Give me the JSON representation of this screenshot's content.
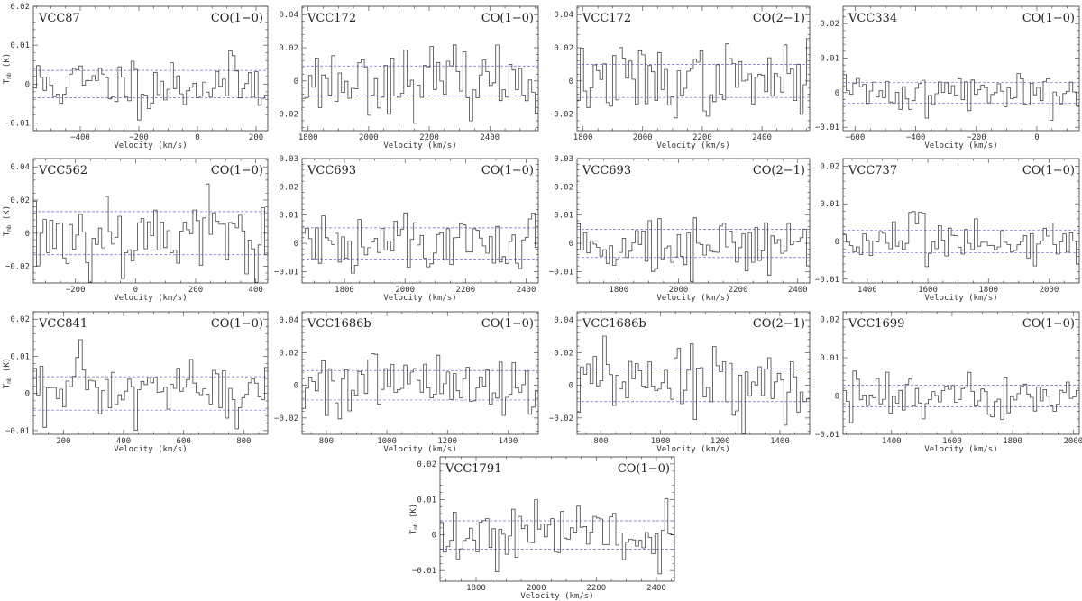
{
  "figure": {
    "y_axis_label_main": "T",
    "y_axis_label_sub": "mb",
    "y_axis_label_unit": "(K)",
    "colors": {
      "spectrum": "#444444",
      "rms": "#6b6bd6",
      "frame": "#333333"
    }
  },
  "chart_data": [
    {
      "type": "line",
      "source": "VCC87",
      "line": "CO(1−0)",
      "xlabel": "Velocity (km/s)",
      "xlim": [
        -560,
        240
      ],
      "ylim": [
        -0.012,
        0.02
      ],
      "xticks": [
        -400,
        -200,
        0,
        200
      ],
      "xtick_labels": [
        "−400",
        "−200",
        "0",
        "200"
      ],
      "yticks": [
        -0.01,
        0,
        0.01,
        0.02
      ],
      "ytick_labels": [
        "−0.01",
        "0",
        "0.01",
        "0.02"
      ],
      "rms": 0.0035,
      "seed": 11
    },
    {
      "type": "line",
      "source": "VCC172",
      "line": "CO(1−0)",
      "xlabel": "Velocity (km/s)",
      "xlim": [
        1780,
        2560
      ],
      "ylim": [
        -0.03,
        0.045
      ],
      "xticks": [
        1800,
        2000,
        2200,
        2400
      ],
      "xtick_labels": [
        "1800",
        "2000",
        "2200",
        "2400"
      ],
      "yticks": [
        -0.02,
        0,
        0.02,
        0.04
      ],
      "ytick_labels": [
        "−0.02",
        "0",
        "0.02",
        "0.04"
      ],
      "rms": 0.009,
      "seed": 23
    },
    {
      "type": "line",
      "source": "VCC172",
      "line": "CO(2−1)",
      "xlabel": "Velocity (km/s)",
      "xlim": [
        1780,
        2560
      ],
      "ylim": [
        -0.03,
        0.045
      ],
      "xticks": [
        1800,
        2000,
        2200,
        2400
      ],
      "xtick_labels": [
        "1800",
        "2000",
        "2200",
        "2400"
      ],
      "yticks": [
        -0.02,
        0,
        0.02,
        0.04
      ],
      "ytick_labels": [
        "−0.02",
        "0",
        "0.02",
        "0.04"
      ],
      "rms": 0.01,
      "seed": 37
    },
    {
      "type": "line",
      "source": "VCC334",
      "line": "CO(1−0)",
      "xlabel": "Velocity (km/s)",
      "xlim": [
        -640,
        140
      ],
      "ylim": [
        -0.011,
        0.025
      ],
      "xticks": [
        -600,
        -400,
        -200,
        0
      ],
      "xtick_labels": [
        "−600",
        "−400",
        "−200",
        "0"
      ],
      "yticks": [
        -0.01,
        0,
        0.01,
        0.02
      ],
      "ytick_labels": [
        "−0.01",
        "0",
        "0.01",
        "0.02"
      ],
      "rms": 0.003,
      "seed": 41
    },
    {
      "type": "line",
      "source": "VCC562",
      "line": "CO(1−0)",
      "xlabel": "Velocity (km/s)",
      "xlim": [
        -340,
        440
      ],
      "ylim": [
        -0.03,
        0.045
      ],
      "xticks": [
        -200,
        0,
        200,
        400
      ],
      "xtick_labels": [
        "−200",
        "0",
        "200",
        "400"
      ],
      "yticks": [
        -0.02,
        0,
        0.02,
        0.04
      ],
      "ytick_labels": [
        "−0.02",
        "0",
        "0.02",
        "0.04"
      ],
      "rms": 0.013,
      "seed": 53
    },
    {
      "type": "line",
      "source": "VCC693",
      "line": "CO(1−0)",
      "xlabel": "Velocity (km/s)",
      "xlim": [
        1660,
        2440
      ],
      "ylim": [
        -0.014,
        0.03
      ],
      "xticks": [
        1800,
        2000,
        2200,
        2400
      ],
      "xtick_labels": [
        "1800",
        "2000",
        "2200",
        "2400"
      ],
      "yticks": [
        -0.01,
        0,
        0.01,
        0.02,
        0.03
      ],
      "ytick_labels": [
        "−0.01",
        "0",
        "0.01",
        "0.02",
        "0.03"
      ],
      "rms": 0.0055,
      "seed": 61
    },
    {
      "type": "line",
      "source": "VCC693",
      "line": "CO(2−1)",
      "xlabel": "Velocity (km/s)",
      "xlim": [
        1660,
        2440
      ],
      "ylim": [
        -0.014,
        0.03
      ],
      "xticks": [
        1800,
        2000,
        2200,
        2400
      ],
      "xtick_labels": [
        "1800",
        "2000",
        "2200",
        "2400"
      ],
      "yticks": [
        -0.01,
        0,
        0.01,
        0.02,
        0.03
      ],
      "ytick_labels": [
        "−0.01",
        "0",
        "0.01",
        "0.02",
        "0.03"
      ],
      "rms": 0.005,
      "seed": 73
    },
    {
      "type": "line",
      "source": "VCC737",
      "line": "CO(1−0)",
      "xlabel": "Velocity (km/s)",
      "xlim": [
        1320,
        2100
      ],
      "ylim": [
        -0.011,
        0.022
      ],
      "xticks": [
        1400,
        1600,
        1800,
        2000
      ],
      "xtick_labels": [
        "1400",
        "1600",
        "1800",
        "2000"
      ],
      "yticks": [
        -0.01,
        0,
        0.01,
        0.02
      ],
      "ytick_labels": [
        "−0.01",
        "0",
        "0.01",
        "0.02"
      ],
      "rms": 0.003,
      "seed": 83
    },
    {
      "type": "line",
      "source": "VCC841",
      "line": "CO(1−0)",
      "xlabel": "Velocity (km/s)",
      "xlim": [
        100,
        880
      ],
      "ylim": [
        -0.011,
        0.022
      ],
      "xticks": [
        200,
        400,
        600,
        800
      ],
      "xtick_labels": [
        "200",
        "400",
        "600",
        "800"
      ],
      "yticks": [
        -0.01,
        0,
        0.01,
        0.02
      ],
      "ytick_labels": [
        "−0.01",
        "0",
        "0.01",
        "0.02"
      ],
      "rms": 0.0045,
      "seed": 97
    },
    {
      "type": "line",
      "source": "VCC1686b",
      "line": "CO(1−0)",
      "xlabel": "Velocity (km/s)",
      "xlim": [
        720,
        1500
      ],
      "ylim": [
        -0.03,
        0.045
      ],
      "xticks": [
        800,
        1000,
        1200,
        1400
      ],
      "xtick_labels": [
        "800",
        "1000",
        "1200",
        "1400"
      ],
      "yticks": [
        -0.02,
        0,
        0.02,
        0.04
      ],
      "ytick_labels": [
        "−0.02",
        "0",
        "0.02",
        "0.04"
      ],
      "rms": 0.009,
      "seed": 101
    },
    {
      "type": "line",
      "source": "VCC1686b",
      "line": "CO(2−1)",
      "xlabel": "Velocity (km/s)",
      "xlim": [
        720,
        1500
      ],
      "ylim": [
        -0.03,
        0.045
      ],
      "xticks": [
        800,
        1000,
        1200,
        1400
      ],
      "xtick_labels": [
        "800",
        "1000",
        "1200",
        "1400"
      ],
      "yticks": [
        -0.02,
        0,
        0.02,
        0.04
      ],
      "ytick_labels": [
        "−0.02",
        "0",
        "0.02",
        "0.04"
      ],
      "rms": 0.01,
      "seed": 113
    },
    {
      "type": "line",
      "source": "VCC1699",
      "line": "CO(1−0)",
      "xlabel": "Velocity (km/s)",
      "xlim": [
        1240,
        2020
      ],
      "ylim": [
        -0.01,
        0.022
      ],
      "xticks": [
        1400,
        1600,
        1800,
        2000
      ],
      "xtick_labels": [
        "1400",
        "1600",
        "1800",
        "2000"
      ],
      "yticks": [
        -0.01,
        0,
        0.01,
        0.02
      ],
      "ytick_labels": [
        "−0.01",
        "0",
        "0.01",
        "0.02"
      ],
      "rms": 0.0028,
      "seed": 127
    },
    {
      "type": "line",
      "source": "VCC1791",
      "line": "CO(1−0)",
      "xlabel": "Velocity (km/s)",
      "xlim": [
        1680,
        2460
      ],
      "ylim": [
        -0.013,
        0.022
      ],
      "xticks": [
        1800,
        2000,
        2200,
        2400
      ],
      "xtick_labels": [
        "1800",
        "2000",
        "2200",
        "2400"
      ],
      "yticks": [
        -0.01,
        0,
        0.01,
        0.02
      ],
      "ytick_labels": [
        "−0.01",
        "0",
        "0.01",
        "0.02"
      ],
      "rms": 0.004,
      "seed": 131
    }
  ]
}
